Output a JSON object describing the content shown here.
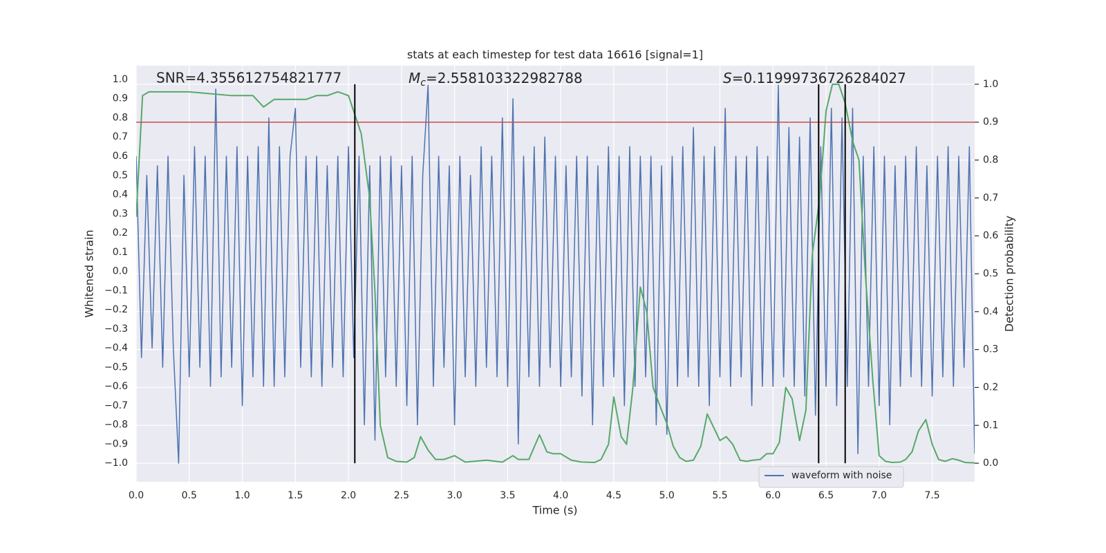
{
  "chart_data": {
    "type": "line",
    "title": "stats at each timestep for test data 16616 [signal=1]",
    "xlabel": "Time (s)",
    "ylabel": "Whitened strain",
    "y2label": "Detection probability",
    "annotations": [
      {
        "text": "SNR=4.355612754821777"
      },
      {
        "symbol": "M",
        "subscript": "c",
        "text": "=2.558103322982788"
      },
      {
        "symbol": "S",
        "text": "=0.11999736726284027"
      }
    ],
    "xlim": [
      0,
      7.9
    ],
    "ylim": [
      -1.097,
      1.072
    ],
    "y2lim": [
      -0.049,
      1.049
    ],
    "xticks": [
      {
        "value": 0,
        "label": "0.0"
      },
      0.5,
      {
        "value": 1,
        "label": "1.0"
      },
      1.5,
      {
        "value": 2,
        "label": "2.0"
      },
      2.5,
      {
        "value": 3,
        "label": "3.0"
      },
      3.5,
      {
        "value": 4,
        "label": "4.0"
      },
      4.5,
      {
        "value": 5,
        "label": "5.0"
      },
      5.5,
      {
        "value": 6,
        "label": "6.0"
      },
      6.5,
      {
        "value": 7,
        "label": "7.0"
      },
      7.5
    ],
    "yticks": [
      {
        "value": 1,
        "label": "1.0"
      },
      0.9,
      0.8,
      0.7,
      0.6,
      0.5,
      0.4,
      0.3,
      0.2,
      0.1,
      {
        "value": 0,
        "label": "0.0"
      },
      {
        "value": -0.1,
        "label": "−0.1"
      },
      {
        "value": -0.2,
        "label": "−0.2"
      },
      {
        "value": -0.3,
        "label": "−0.3"
      },
      {
        "value": -0.4,
        "label": "−0.4"
      },
      {
        "value": -0.5,
        "label": "−0.5"
      },
      {
        "value": -0.6,
        "label": "−0.6"
      },
      {
        "value": -0.7,
        "label": "−0.7"
      },
      {
        "value": -0.8,
        "label": "−0.8"
      },
      {
        "value": -0.9,
        "label": "−0.9"
      },
      {
        "value": -1,
        "label": "−1.0"
      }
    ],
    "y2ticks": [
      {
        "value": 0,
        "label": "0.0"
      },
      0.1,
      0.2,
      0.3,
      0.4,
      0.5,
      0.6,
      0.7,
      0.8,
      0.9,
      {
        "value": 1,
        "label": "1.0"
      }
    ],
    "grid": true,
    "legend": "lower right",
    "threshold": {
      "value": 0.9,
      "color": "#c44e52"
    },
    "vlines": {
      "x": [
        2.06,
        6.43,
        6.68
      ],
      "color": "#000000"
    },
    "series": [
      {
        "name": "waveform with noise",
        "color": "#4c72b0",
        "x": [
          0,
          0.05,
          0.1,
          0.15,
          0.2,
          0.25,
          0.3,
          0.35,
          0.4,
          0.45,
          0.5,
          0.55,
          0.6,
          0.65,
          0.7,
          0.75,
          0.8,
          0.85,
          0.9,
          0.95,
          1,
          1.05,
          1.1,
          1.15,
          1.2,
          1.25,
          1.3,
          1.35,
          1.4,
          1.45,
          1.5,
          1.55,
          1.6,
          1.65,
          1.7,
          1.75,
          1.8,
          1.85,
          1.9,
          1.95,
          2,
          2.05,
          2.1,
          2.15,
          2.2,
          2.25,
          2.3,
          2.35,
          2.4,
          2.45,
          2.5,
          2.55,
          2.6,
          2.65,
          2.7,
          2.75,
          2.8,
          2.85,
          2.9,
          2.95,
          3,
          3.05,
          3.1,
          3.15,
          3.2,
          3.25,
          3.3,
          3.35,
          3.4,
          3.45,
          3.5,
          3.55,
          3.6,
          3.65,
          3.7,
          3.75,
          3.8,
          3.85,
          3.9,
          3.95,
          4,
          4.05,
          4.1,
          4.15,
          4.2,
          4.25,
          4.3,
          4.35,
          4.4,
          4.45,
          4.5,
          4.55,
          4.6,
          4.65,
          4.7,
          4.75,
          4.8,
          4.85,
          4.9,
          4.95,
          5,
          5.05,
          5.1,
          5.15,
          5.2,
          5.25,
          5.3,
          5.35,
          5.4,
          5.45,
          5.5,
          5.55,
          5.6,
          5.65,
          5.7,
          5.75,
          5.8,
          5.85,
          5.9,
          5.95,
          6,
          6.05,
          6.1,
          6.15,
          6.2,
          6.25,
          6.3,
          6.35,
          6.4,
          6.45,
          6.5,
          6.55,
          6.6,
          6.65,
          6.7,
          6.75,
          6.8,
          6.85,
          6.9,
          6.95,
          7,
          7.05,
          7.1,
          7.15,
          7.2,
          7.25,
          7.3,
          7.35,
          7.4,
          7.45,
          7.5,
          7.55,
          7.6,
          7.65,
          7.7,
          7.75,
          7.8,
          7.85,
          7.9
        ],
        "values": [
          0.6,
          -0.45,
          0.5,
          -0.4,
          0.55,
          -0.5,
          0.6,
          -0.4,
          -1.0,
          0.5,
          -0.55,
          0.65,
          -0.5,
          0.6,
          -0.6,
          0.95,
          -0.55,
          0.6,
          -0.5,
          0.65,
          -0.7,
          0.6,
          -0.55,
          0.65,
          -0.6,
          0.8,
          -0.6,
          0.65,
          -0.55,
          0.6,
          0.85,
          -0.5,
          0.6,
          -0.55,
          0.6,
          -0.6,
          0.55,
          -0.5,
          0.6,
          -0.55,
          0.65,
          -0.45,
          0.6,
          -0.8,
          0.55,
          -0.88,
          0.6,
          -0.55,
          0.6,
          -0.6,
          0.55,
          -0.7,
          0.6,
          -0.8,
          0.5,
          0.97,
          -0.6,
          0.6,
          -0.5,
          0.55,
          -0.8,
          0.6,
          -0.55,
          0.5,
          -0.6,
          0.65,
          -0.5,
          0.6,
          -0.55,
          0.8,
          -0.6,
          0.9,
          -0.9,
          0.6,
          -0.55,
          0.65,
          -0.6,
          0.7,
          -0.5,
          0.6,
          -0.6,
          0.55,
          -0.55,
          0.6,
          -0.65,
          0.6,
          -0.8,
          0.55,
          -0.6,
          0.65,
          -0.55,
          0.6,
          -0.7,
          0.65,
          -0.6,
          0.6,
          -0.55,
          0.6,
          -0.8,
          0.55,
          -0.85,
          0.6,
          -0.6,
          0.65,
          -0.55,
          0.75,
          -0.6,
          0.6,
          -0.7,
          0.65,
          -0.55,
          0.85,
          -0.6,
          0.6,
          -0.55,
          0.6,
          -0.7,
          0.65,
          -0.6,
          0.6,
          -0.6,
          0.97,
          -0.55,
          0.75,
          -0.6,
          0.7,
          -0.65,
          0.8,
          -0.75,
          0.65,
          -0.6,
          0.85,
          -0.7,
          0.8,
          -0.6,
          0.85,
          -0.95,
          0.6,
          -0.6,
          0.65,
          -0.7,
          0.6,
          -0.8,
          0.55,
          -0.6,
          0.6,
          -0.55,
          0.65,
          -0.6,
          0.55,
          -0.65,
          0.6,
          -0.55,
          0.65,
          -0.6,
          0.6,
          -0.5,
          0.65,
          -0.95
        ]
      },
      {
        "color": "#55a868",
        "axis": "y2",
        "x": [
          0,
          0.06,
          0.12,
          0.5,
          0.9,
          1,
          1.1,
          1.2,
          1.3,
          1.4,
          1.5,
          1.6,
          1.7,
          1.8,
          1.9,
          2,
          2.06,
          2.12,
          2.2,
          2.25,
          2.3,
          2.37,
          2.45,
          2.55,
          2.62,
          2.68,
          2.75,
          2.82,
          2.9,
          3,
          3.1,
          3.3,
          3.45,
          3.55,
          3.6,
          3.7,
          3.8,
          3.87,
          3.93,
          4,
          4.1,
          4.2,
          4.32,
          4.38,
          4.45,
          4.5,
          4.57,
          4.62,
          4.68,
          4.75,
          4.81,
          4.87,
          4.95,
          5,
          5.06,
          5.12,
          5.18,
          5.25,
          5.32,
          5.38,
          5.44,
          5.5,
          5.56,
          5.62,
          5.69,
          5.75,
          5.81,
          5.88,
          5.94,
          6,
          6.06,
          6.12,
          6.18,
          6.25,
          6.31,
          6.37,
          6.44,
          6.5,
          6.56,
          6.62,
          6.68,
          6.75,
          6.81,
          6.87,
          6.94,
          7,
          7.06,
          7.12,
          7.2,
          7.25,
          7.31,
          7.37,
          7.44,
          7.5,
          7.56,
          7.62,
          7.69,
          7.75,
          7.81,
          7.9
        ],
        "values": [
          0.65,
          0.97,
          0.98,
          0.98,
          0.97,
          0.97,
          0.97,
          0.94,
          0.96,
          0.96,
          0.96,
          0.96,
          0.97,
          0.97,
          0.98,
          0.97,
          0.92,
          0.87,
          0.7,
          0.45,
          0.1,
          0.015,
          0.005,
          0.003,
          0.015,
          0.07,
          0.035,
          0.01,
          0.01,
          0.02,
          0.003,
          0.008,
          0.003,
          0.02,
          0.01,
          0.01,
          0.075,
          0.03,
          0.025,
          0.025,
          0.008,
          0.003,
          0.002,
          0.01,
          0.05,
          0.175,
          0.07,
          0.05,
          0.2,
          0.465,
          0.4,
          0.2,
          0.14,
          0.105,
          0.045,
          0.015,
          0.005,
          0.008,
          0.045,
          0.13,
          0.095,
          0.06,
          0.07,
          0.05,
          0.008,
          0.005,
          0.008,
          0.01,
          0.025,
          0.025,
          0.055,
          0.2,
          0.17,
          0.06,
          0.14,
          0.55,
          0.7,
          0.93,
          1.0,
          1.0,
          0.95,
          0.85,
          0.8,
          0.5,
          0.22,
          0.02,
          0.005,
          0.002,
          0.003,
          0.01,
          0.03,
          0.085,
          0.115,
          0.05,
          0.01,
          0.005,
          0.012,
          0.008,
          0.002,
          0.001
        ]
      }
    ]
  }
}
